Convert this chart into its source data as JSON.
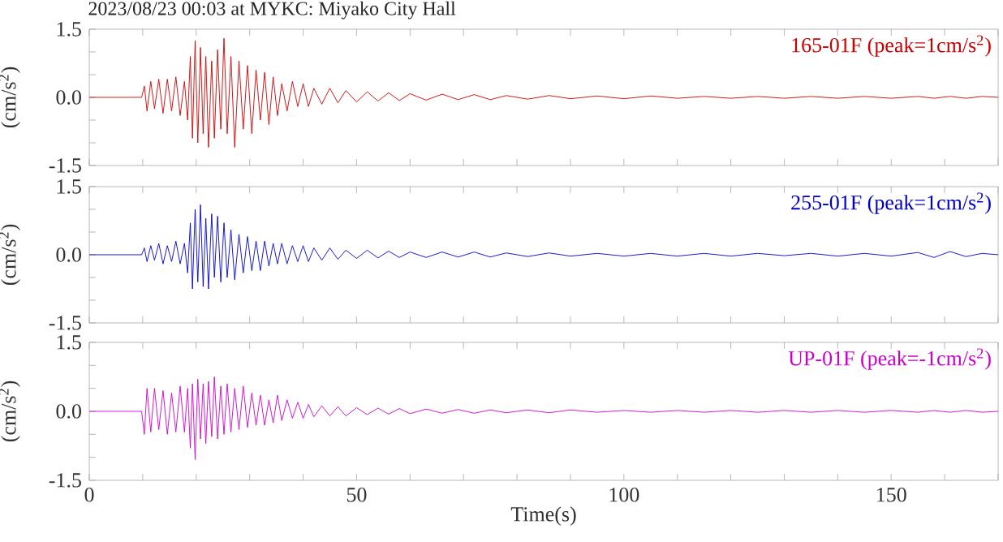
{
  "chart_data": [
    {
      "type": "line",
      "title": "2023/08/23 00:03 at MYKC: Miyako City Hall",
      "ylabel": "(cm/s$^{2}$)",
      "annotations": [
        "165-01F (peak=1cm/s$^{2}$)"
      ],
      "tick_labels": "y",
      "xlim": [
        0,
        170
      ],
      "xticks": [
        0,
        {
          "value": 10,
          "label": null
        },
        {
          "value": 20,
          "label": null
        },
        {
          "value": 30,
          "label": null
        },
        {
          "value": 40,
          "label": null
        },
        50,
        {
          "value": 60,
          "label": null
        },
        {
          "value": 70,
          "label": null
        },
        {
          "value": 80,
          "label": null
        },
        {
          "value": 90,
          "label": null
        },
        100,
        {
          "value": 110,
          "label": null
        },
        {
          "value": 120,
          "label": null
        },
        {
          "value": 130,
          "label": null
        },
        {
          "value": 140,
          "label": null
        },
        150,
        {
          "value": 160,
          "label": null
        },
        {
          "value": 170,
          "label": null
        }
      ],
      "ylim": [
        -1.5,
        1.5
      ],
      "yticks": [
        {
          "value": -1.5,
          "label": "-1.5"
        },
        {
          "value": -1,
          "label": null
        },
        {
          "value": -0.5,
          "label": null
        },
        {
          "value": 0,
          "label": "0.0"
        },
        {
          "value": 0.5,
          "label": null
        },
        {
          "value": 1,
          "label": null
        },
        {
          "value": 1.5,
          "label": "1.5"
        }
      ],
      "x": [
        0,
        9.8,
        10.3,
        10.8,
        11.5,
        12.2,
        13,
        13.8,
        14.6,
        15.4,
        16.2,
        17,
        17.8,
        18.4,
        18.9,
        19.3,
        19.8,
        20.3,
        20.8,
        21.3,
        21.8,
        22.3,
        22.9,
        23.4,
        24,
        24.6,
        25.2,
        25.8,
        26.5,
        27.2,
        28,
        28.8,
        29.6,
        30.4,
        31.2,
        32,
        32.8,
        33.6,
        34.4,
        35.2,
        36,
        37,
        38,
        39,
        40,
        41,
        42,
        43.5,
        45,
        46.5,
        48,
        50,
        52,
        54,
        56,
        58,
        60,
        63,
        66,
        69,
        72,
        75,
        78,
        82,
        86,
        90,
        95,
        100,
        105,
        110,
        115,
        120,
        125,
        130,
        135,
        140,
        145,
        150,
        155,
        158,
        161,
        164,
        167,
        170
      ],
      "series": [
        {
          "color": "#cc0000",
          "values": [
            0,
            0,
            0.25,
            -0.3,
            0.35,
            -0.25,
            0.4,
            -0.35,
            0.4,
            -0.3,
            0.45,
            -0.4,
            0.35,
            -0.5,
            0.9,
            -0.9,
            1.25,
            -1.0,
            1.1,
            -0.8,
            0.9,
            -1.1,
            0.8,
            -0.9,
            1.05,
            -0.7,
            1.3,
            -0.8,
            0.9,
            -1.1,
            0.8,
            -0.7,
            0.7,
            -0.8,
            0.6,
            -0.5,
            0.55,
            -0.6,
            0.45,
            -0.4,
            0.3,
            -0.3,
            0.35,
            -0.2,
            0.3,
            -0.2,
            0.2,
            -0.15,
            0.2,
            -0.12,
            0.15,
            -0.1,
            0.12,
            -0.08,
            0.1,
            -0.07,
            0.08,
            -0.06,
            0.07,
            -0.05,
            0.06,
            -0.05,
            0.04,
            -0.04,
            0.04,
            -0.03,
            0.03,
            -0.03,
            0.03,
            -0.02,
            0.02,
            -0.02,
            0.02,
            -0.02,
            0.02,
            -0.02,
            0.02,
            -0.02,
            0.02,
            -0.02,
            0.02,
            -0.02,
            0.02,
            0
          ]
        }
      ]
    },
    {
      "type": "line",
      "ylabel": "(cm/s$^{2}$)",
      "annotations": [
        "255-01F (peak=1cm/s$^{2}$)"
      ],
      "tick_labels": "y",
      "xlim": [
        0,
        170
      ],
      "xticks": [
        0,
        {
          "value": 10,
          "label": null
        },
        {
          "value": 20,
          "label": null
        },
        {
          "value": 30,
          "label": null
        },
        {
          "value": 40,
          "label": null
        },
        50,
        {
          "value": 60,
          "label": null
        },
        {
          "value": 70,
          "label": null
        },
        {
          "value": 80,
          "label": null
        },
        {
          "value": 90,
          "label": null
        },
        100,
        {
          "value": 110,
          "label": null
        },
        {
          "value": 120,
          "label": null
        },
        {
          "value": 130,
          "label": null
        },
        {
          "value": 140,
          "label": null
        },
        150,
        {
          "value": 160,
          "label": null
        },
        {
          "value": 170,
          "label": null
        }
      ],
      "ylim": [
        -1.5,
        1.5
      ],
      "yticks": [
        {
          "value": -1.5,
          "label": "-1.5"
        },
        {
          "value": -1,
          "label": null
        },
        {
          "value": -0.5,
          "label": null
        },
        {
          "value": 0,
          "label": "0.0"
        },
        {
          "value": 0.5,
          "label": null
        },
        {
          "value": 1,
          "label": null
        },
        {
          "value": 1.5,
          "label": "1.5"
        }
      ],
      "x": [
        0,
        9.8,
        10.3,
        10.8,
        11.5,
        12.2,
        13,
        13.8,
        14.6,
        15.4,
        16.2,
        17,
        17.8,
        18.4,
        18.9,
        19.3,
        19.8,
        20.3,
        20.8,
        21.3,
        21.8,
        22.3,
        22.9,
        23.4,
        24,
        24.6,
        25.2,
        25.8,
        26.5,
        27.2,
        28,
        28.8,
        29.6,
        30.4,
        31.2,
        32,
        32.8,
        33.6,
        34.4,
        35.2,
        36,
        37,
        38,
        39,
        40,
        41,
        42,
        43.5,
        45,
        46.5,
        48,
        50,
        52,
        54,
        56,
        58,
        60,
        63,
        66,
        69,
        72,
        75,
        78,
        82,
        86,
        90,
        95,
        100,
        105,
        110,
        115,
        120,
        125,
        130,
        135,
        140,
        145,
        150,
        155,
        158,
        161,
        164,
        167,
        170
      ],
      "series": [
        {
          "color": "#0000cc",
          "values": [
            0,
            0,
            0.15,
            -0.15,
            0.2,
            -0.12,
            0.25,
            -0.2,
            0.2,
            -0.15,
            0.3,
            -0.2,
            0.25,
            -0.4,
            0.7,
            -0.75,
            1.0,
            -0.6,
            1.1,
            -0.7,
            0.8,
            -0.75,
            0.9,
            -0.5,
            0.85,
            -0.6,
            0.7,
            -0.5,
            0.55,
            -0.55,
            0.45,
            -0.4,
            0.4,
            -0.35,
            0.3,
            -0.35,
            0.3,
            -0.25,
            0.25,
            -0.2,
            0.25,
            -0.2,
            0.2,
            -0.15,
            0.2,
            -0.15,
            0.15,
            -0.12,
            0.15,
            -0.1,
            0.1,
            -0.08,
            0.1,
            -0.07,
            0.08,
            -0.06,
            0.06,
            -0.06,
            0.06,
            -0.05,
            0.06,
            -0.05,
            0.04,
            -0.04,
            0.04,
            -0.03,
            0.03,
            -0.03,
            0.03,
            -0.03,
            0.03,
            -0.03,
            0.03,
            -0.02,
            0.03,
            -0.03,
            0.03,
            -0.03,
            0.05,
            -0.06,
            0.07,
            -0.04,
            0.03,
            0
          ]
        }
      ]
    },
    {
      "type": "line",
      "xlabel": "Time(s)",
      "ylabel": "(cm/s$^{2}$)",
      "annotations": [
        "UP-01F (peak=-1cm/s$^{2}$)"
      ],
      "xlim": [
        0,
        170
      ],
      "xticks": [
        0,
        {
          "value": 10,
          "label": null
        },
        {
          "value": 20,
          "label": null
        },
        {
          "value": 30,
          "label": null
        },
        {
          "value": 40,
          "label": null
        },
        50,
        {
          "value": 60,
          "label": null
        },
        {
          "value": 70,
          "label": null
        },
        {
          "value": 80,
          "label": null
        },
        {
          "value": 90,
          "label": null
        },
        100,
        {
          "value": 110,
          "label": null
        },
        {
          "value": 120,
          "label": null
        },
        {
          "value": 130,
          "label": null
        },
        {
          "value": 140,
          "label": null
        },
        150,
        {
          "value": 160,
          "label": null
        },
        {
          "value": 170,
          "label": null
        }
      ],
      "ylim": [
        -1.5,
        1.5
      ],
      "yticks": [
        {
          "value": -1.5,
          "label": "-1.5"
        },
        {
          "value": -1,
          "label": null
        },
        {
          "value": -0.5,
          "label": null
        },
        {
          "value": 0,
          "label": "0.0"
        },
        {
          "value": 0.5,
          "label": null
        },
        {
          "value": 1,
          "label": null
        },
        {
          "value": 1.5,
          "label": "1.5"
        }
      ],
      "x": [
        0,
        9.8,
        10.3,
        10.8,
        11.5,
        12.2,
        13,
        13.8,
        14.6,
        15.4,
        16.2,
        17,
        17.8,
        18.4,
        18.9,
        19.3,
        19.8,
        20.3,
        20.8,
        21.3,
        21.8,
        22.3,
        22.9,
        23.4,
        24,
        24.6,
        25.2,
        25.8,
        26.5,
        27.2,
        28,
        28.8,
        29.6,
        30.4,
        31.2,
        32,
        32.8,
        33.6,
        34.4,
        35.2,
        36,
        37,
        38,
        39,
        40,
        41,
        42,
        43.5,
        45,
        46.5,
        48,
        50,
        52,
        54,
        56,
        58,
        60,
        63,
        66,
        69,
        72,
        75,
        78,
        82,
        86,
        90,
        95,
        100,
        105,
        110,
        115,
        120,
        125,
        130,
        135,
        140,
        145,
        150,
        155,
        158,
        161,
        164,
        167,
        170
      ],
      "series": [
        {
          "color": "#cc00cc",
          "values": [
            0,
            0,
            -0.5,
            0.5,
            -0.45,
            0.5,
            -0.4,
            0.45,
            -0.5,
            0.4,
            -0.45,
            0.55,
            -0.45,
            0.5,
            -0.8,
            0.6,
            -1.05,
            0.7,
            -0.6,
            0.6,
            -0.7,
            0.65,
            -0.55,
            0.75,
            -0.6,
            0.55,
            -0.5,
            0.6,
            -0.45,
            0.5,
            -0.4,
            0.55,
            -0.35,
            0.4,
            -0.3,
            0.35,
            -0.3,
            0.25,
            -0.25,
            0.35,
            -0.2,
            0.25,
            -0.15,
            0.2,
            -0.15,
            0.15,
            -0.12,
            0.12,
            -0.1,
            0.1,
            -0.1,
            0.08,
            -0.07,
            0.07,
            -0.06,
            0.06,
            -0.05,
            0.05,
            -0.04,
            0.04,
            -0.04,
            0.03,
            -0.03,
            0.03,
            -0.03,
            0.03,
            -0.02,
            0.02,
            -0.02,
            0.02,
            -0.02,
            0.02,
            -0.02,
            0.02,
            -0.02,
            0.02,
            -0.02,
            0.02,
            -0.02,
            0.02,
            -0.02,
            0.02,
            -0.02,
            0
          ]
        }
      ]
    }
  ]
}
